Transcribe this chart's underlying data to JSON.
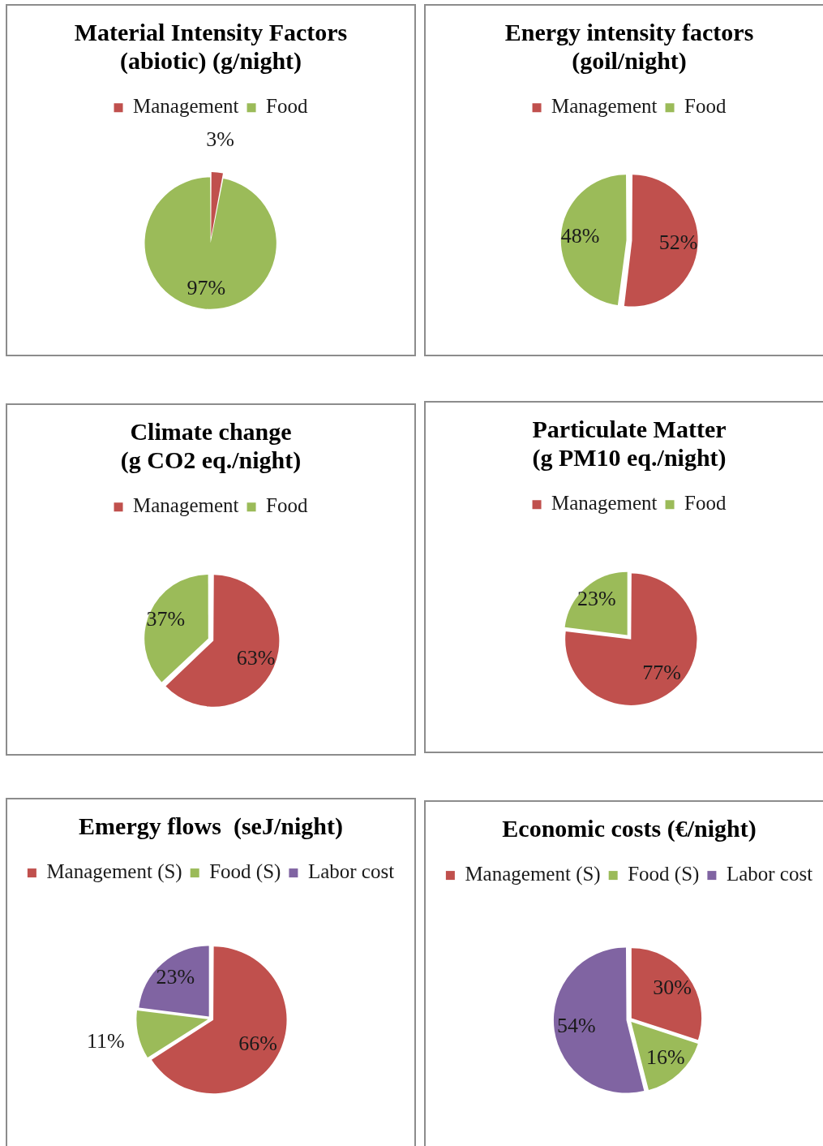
{
  "chart_data": [
    {
      "type": "pie",
      "title": "Material Intensity Factors\n(abiotic) (g/night)",
      "categories": [
        "Management",
        "Food"
      ],
      "values": [
        3,
        97
      ],
      "colors": [
        "#c0504d",
        "#9bbb59"
      ],
      "value_labels": [
        "3%",
        "97%"
      ],
      "legend": "top"
    },
    {
      "type": "pie",
      "title": "Energy intensity factors\n(goil/night)",
      "categories": [
        "Management",
        "Food"
      ],
      "values": [
        52,
        48
      ],
      "colors": [
        "#c0504d",
        "#9bbb59"
      ],
      "value_labels": [
        "52%",
        "48%"
      ],
      "legend": "top"
    },
    {
      "type": "pie",
      "title": "Climate change\n(g CO2 eq./night)",
      "categories": [
        "Management",
        "Food"
      ],
      "values": [
        63,
        37
      ],
      "colors": [
        "#c0504d",
        "#9bbb59"
      ],
      "value_labels": [
        "63%",
        "37%"
      ],
      "legend": "top"
    },
    {
      "type": "pie",
      "title": "Particulate Matter\n(g PM10 eq./night)",
      "categories": [
        "Management",
        "Food"
      ],
      "values": [
        77,
        23
      ],
      "colors": [
        "#c0504d",
        "#9bbb59"
      ],
      "value_labels": [
        "77%",
        "23%"
      ],
      "legend": "top"
    },
    {
      "type": "pie",
      "title": "Emergy flows  (seJ/night)",
      "categories": [
        "Management (S)",
        "Food (S)",
        "Labor cost"
      ],
      "values": [
        66,
        11,
        23
      ],
      "colors": [
        "#c0504d",
        "#9bbb59",
        "#8064a2"
      ],
      "value_labels": [
        "66%",
        "11%",
        "23%"
      ],
      "legend": "top"
    },
    {
      "type": "pie",
      "title": "Economic costs (€/night)",
      "categories": [
        "Management (S)",
        "Food (S)",
        "Labor cost"
      ],
      "values": [
        30,
        16,
        54
      ],
      "colors": [
        "#c0504d",
        "#9bbb59",
        "#8064a2"
      ],
      "value_labels": [
        "30%",
        "16%",
        "54%"
      ],
      "legend": "top"
    }
  ]
}
